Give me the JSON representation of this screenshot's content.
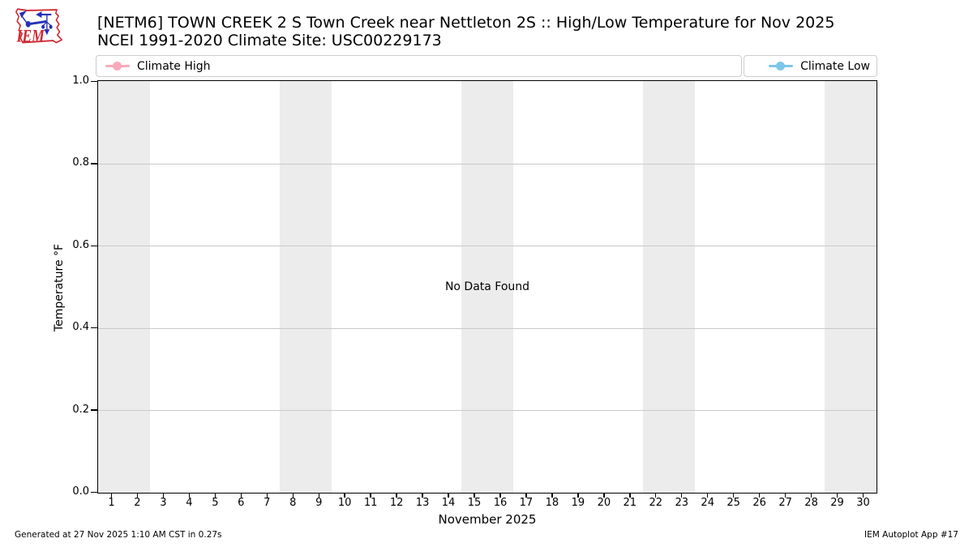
{
  "header": {
    "logo_text": "IEM",
    "logo_outline_color": "#cf2a36",
    "logo_instrument_color": "#2431b8",
    "title_line1": "[NETM6] TOWN CREEK 2 S Town Creek near Nettleton 2S :: High/Low Temperature for Nov 2025",
    "title_line2": "NCEI 1991-2020 Climate Site: USC00229173"
  },
  "legend": {
    "high": {
      "label": "Climate High",
      "color": "#f8a9bb"
    },
    "low": {
      "label": "Climate Low",
      "color": "#7cc7e8"
    }
  },
  "chart_data": {
    "type": "line",
    "title": "[NETM6] TOWN CREEK 2 S Town Creek near Nettleton 2S :: High/Low Temperature for Nov 2025",
    "subtitle": "NCEI 1991-2020 Climate Site: USC00229173",
    "xlabel": "November 2025",
    "ylabel": "Temperature °F",
    "xlim": [
      0.5,
      30.5
    ],
    "ylim": [
      0.0,
      1.0
    ],
    "x_ticks": [
      1,
      2,
      3,
      4,
      5,
      6,
      7,
      8,
      9,
      10,
      11,
      12,
      13,
      14,
      15,
      16,
      17,
      18,
      19,
      20,
      21,
      22,
      23,
      24,
      25,
      26,
      27,
      28,
      29,
      30
    ],
    "y_ticks": [
      0.0,
      0.2,
      0.4,
      0.6,
      0.8,
      1.0
    ],
    "y_tick_labels": [
      "0.0",
      "0.2",
      "0.4",
      "0.6",
      "0.8",
      "1.0"
    ],
    "grid": "horizontal gridlines only",
    "legend_position": "top row: Climate High left box, Climate Low right box",
    "annotation": "No Data Found",
    "weekend_bands": [
      [
        0.5,
        2.5
      ],
      [
        7.5,
        9.5
      ],
      [
        14.5,
        16.5
      ],
      [
        21.5,
        23.5
      ],
      [
        28.5,
        30.5
      ]
    ],
    "band_color": "#ececec",
    "series": [
      {
        "name": "Climate High",
        "color": "#f8a9bb",
        "x": [],
        "values": []
      },
      {
        "name": "Climate Low",
        "color": "#7cc7e8",
        "x": [],
        "values": []
      }
    ]
  },
  "footer": {
    "left": "Generated at 27 Nov 2025 1:10 AM CST in 0.27s",
    "right": "IEM Autoplot App #17"
  }
}
